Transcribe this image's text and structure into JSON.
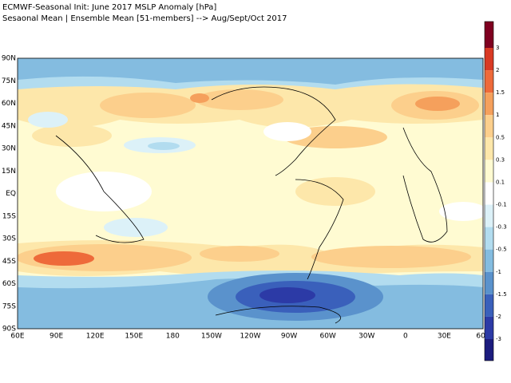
{
  "header": {
    "line1": "ECMWF-Seasonal Init: June 2017 MSLP Anomaly [hPa]",
    "line2": "Sesaonal Mean | Ensemble Mean [51-members] --> Aug/Sept/Oct 2017"
  },
  "map": {
    "lat_labels": [
      "90N",
      "75N",
      "60N",
      "45N",
      "30N",
      "15N",
      "EQ",
      "15S",
      "30S",
      "45S",
      "60S",
      "75S",
      "90S"
    ],
    "lon_labels": [
      "60E",
      "90E",
      "120E",
      "150E",
      "180",
      "150W",
      "120W",
      "90W",
      "60W",
      "30W",
      "0",
      "30E",
      "60E"
    ]
  },
  "colorbar": {
    "labels": [
      3,
      2,
      1.5,
      1,
      0.5,
      0.3,
      0.1,
      -0.1,
      -0.3,
      -0.5,
      -1,
      -1.5,
      -2,
      -3
    ],
    "colors": [
      "#7f0020",
      "#d93a24",
      "#ee6a3a",
      "#f5a05c",
      "#fccf8c",
      "#fde7aa",
      "#fffbd2",
      "#ffffff",
      "#dcf1f8",
      "#b2dcef",
      "#84bce0",
      "#5a92cc",
      "#3a60bb",
      "#2c3aa6",
      "#1c1c7e"
    ]
  }
}
